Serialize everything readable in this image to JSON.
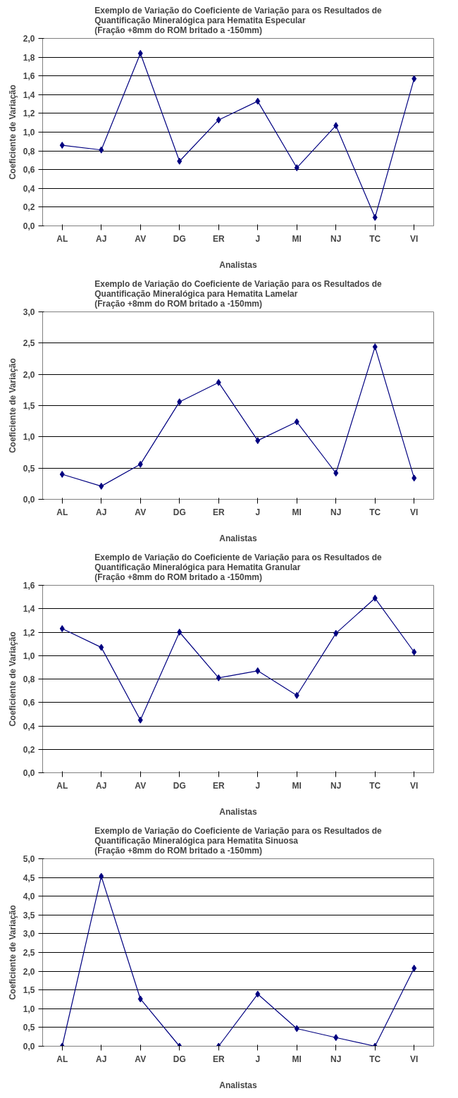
{
  "chart_data": [
    {
      "type": "line",
      "title": "Exemplo de Variação do Coeficiente de Variação para os Resultados de\nQuantificação Mineralógica para Hematita Especular\n(Fração +8mm do ROM britado a -150mm)",
      "xlabel": "Analistas",
      "ylabel": "Coeficiente de Variação",
      "categories": [
        "AL",
        "AJ",
        "AV",
        "DG",
        "ER",
        "J",
        "MI",
        "NJ",
        "TC",
        "VI"
      ],
      "series": [
        {
          "color": "#000080",
          "values": [
            0.86,
            0.81,
            1.84,
            0.69,
            1.13,
            1.33,
            0.62,
            1.07,
            0.09,
            1.57
          ]
        }
      ],
      "ylim": [
        0,
        2
      ],
      "yticks": [
        {
          "value": 0,
          "label": "0,0"
        },
        {
          "value": 0.2,
          "label": "0,2"
        },
        {
          "value": 0.4,
          "label": "0,4"
        },
        {
          "value": 0.6,
          "label": "0,6"
        },
        {
          "value": 0.8,
          "label": "0,8"
        },
        {
          "value": 1.0,
          "label": "1,0"
        },
        {
          "value": 1.2,
          "label": "1,2"
        },
        {
          "value": 1.4,
          "label": "1,4"
        },
        {
          "value": 1.6,
          "label": "1,6"
        },
        {
          "value": 1.8,
          "label": "1,8"
        },
        {
          "value": 2.0,
          "label": "2,0"
        }
      ],
      "grid": "y",
      "marker": "diamond",
      "line_style": "solid"
    },
    {
      "type": "line",
      "title": "Exemplo de Variação do Coeficiente de Variação para os Resultados de\nQuantificação Mineralógica para Hematita Lamelar\n(Fração +8mm do ROM britado a -150mm)",
      "xlabel": "Analistas",
      "ylabel": "Coeficiente de Variação",
      "categories": [
        "AL",
        "AJ",
        "AV",
        "DG",
        "ER",
        "J",
        "MI",
        "NJ",
        "TC",
        "VI"
      ],
      "series": [
        {
          "color": "#000080",
          "values": [
            0.4,
            0.21,
            0.56,
            1.56,
            1.87,
            0.94,
            1.24,
            0.42,
            2.44,
            0.34
          ]
        }
      ],
      "ylim": [
        0,
        3
      ],
      "yticks": [
        {
          "value": 0,
          "label": "0,0"
        },
        {
          "value": 0.5,
          "label": "0,5"
        },
        {
          "value": 1.0,
          "label": "1,0"
        },
        {
          "value": 1.5,
          "label": "1,5"
        },
        {
          "value": 2.0,
          "label": "2,0"
        },
        {
          "value": 2.5,
          "label": "2,5"
        },
        {
          "value": 3.0,
          "label": "3,0"
        }
      ],
      "grid": "y",
      "marker": "diamond",
      "line_style": "solid"
    },
    {
      "type": "line",
      "title": "Exemplo de Variação do Coeficiente de Variação para os Resultados de\nQuantificação Mineralógica para Hematita Granular\n(Fração +8mm do ROM britado a -150mm)",
      "xlabel": "Analistas",
      "ylabel": "Coeficiente de Variação",
      "categories": [
        "AL",
        "AJ",
        "AV",
        "DG",
        "ER",
        "J",
        "MI",
        "NJ",
        "TC",
        "VI"
      ],
      "series": [
        {
          "color": "#000080",
          "values": [
            1.23,
            1.07,
            0.45,
            1.2,
            0.81,
            0.87,
            0.66,
            1.19,
            1.49,
            1.03
          ]
        }
      ],
      "ylim": [
        0,
        1.6
      ],
      "yticks": [
        {
          "value": 0,
          "label": "0,0"
        },
        {
          "value": 0.2,
          "label": "0,2"
        },
        {
          "value": 0.4,
          "label": "0,4"
        },
        {
          "value": 0.6,
          "label": "0,6"
        },
        {
          "value": 0.8,
          "label": "0,8"
        },
        {
          "value": 1.0,
          "label": "1,0"
        },
        {
          "value": 1.2,
          "label": "1,2"
        },
        {
          "value": 1.4,
          "label": "1,4"
        },
        {
          "value": 1.6,
          "label": "1,6"
        }
      ],
      "grid": "y",
      "marker": "diamond",
      "line_style": "solid"
    },
    {
      "type": "line",
      "title": "Exemplo de Variação do Coeficiente de Variação para os Resultados de\nQuantificação Mineralógica para Hematita Sinuosa\n(Fração +8mm do ROM britado a -150mm)",
      "xlabel": "Analistas",
      "ylabel": "Coeficiente de Variação",
      "categories": [
        "AL",
        "AJ",
        "AV",
        "DG",
        "ER",
        "J",
        "MI",
        "NJ",
        "TC",
        "VI"
      ],
      "series": [
        {
          "color": "#000080",
          "values": [
            0,
            4.53,
            1.26,
            0,
            0,
            1.39,
            0.47,
            0.23,
            0,
            2.08
          ]
        }
      ],
      "ylim": [
        0,
        5
      ],
      "yticks": [
        {
          "value": 0,
          "label": "0,0"
        },
        {
          "value": 0.5,
          "label": "0,5"
        },
        {
          "value": 1.0,
          "label": "1,0"
        },
        {
          "value": 1.5,
          "label": "1,5"
        },
        {
          "value": 2.0,
          "label": "2,0"
        },
        {
          "value": 2.5,
          "label": "2,5"
        },
        {
          "value": 3.0,
          "label": "3,0"
        },
        {
          "value": 3.5,
          "label": "3,5"
        },
        {
          "value": 4.0,
          "label": "4,0"
        },
        {
          "value": 4.5,
          "label": "4,5"
        },
        {
          "value": 5.0,
          "label": "5,0"
        }
      ],
      "grid": "y",
      "marker": "diamond",
      "line_style": "solid"
    }
  ]
}
